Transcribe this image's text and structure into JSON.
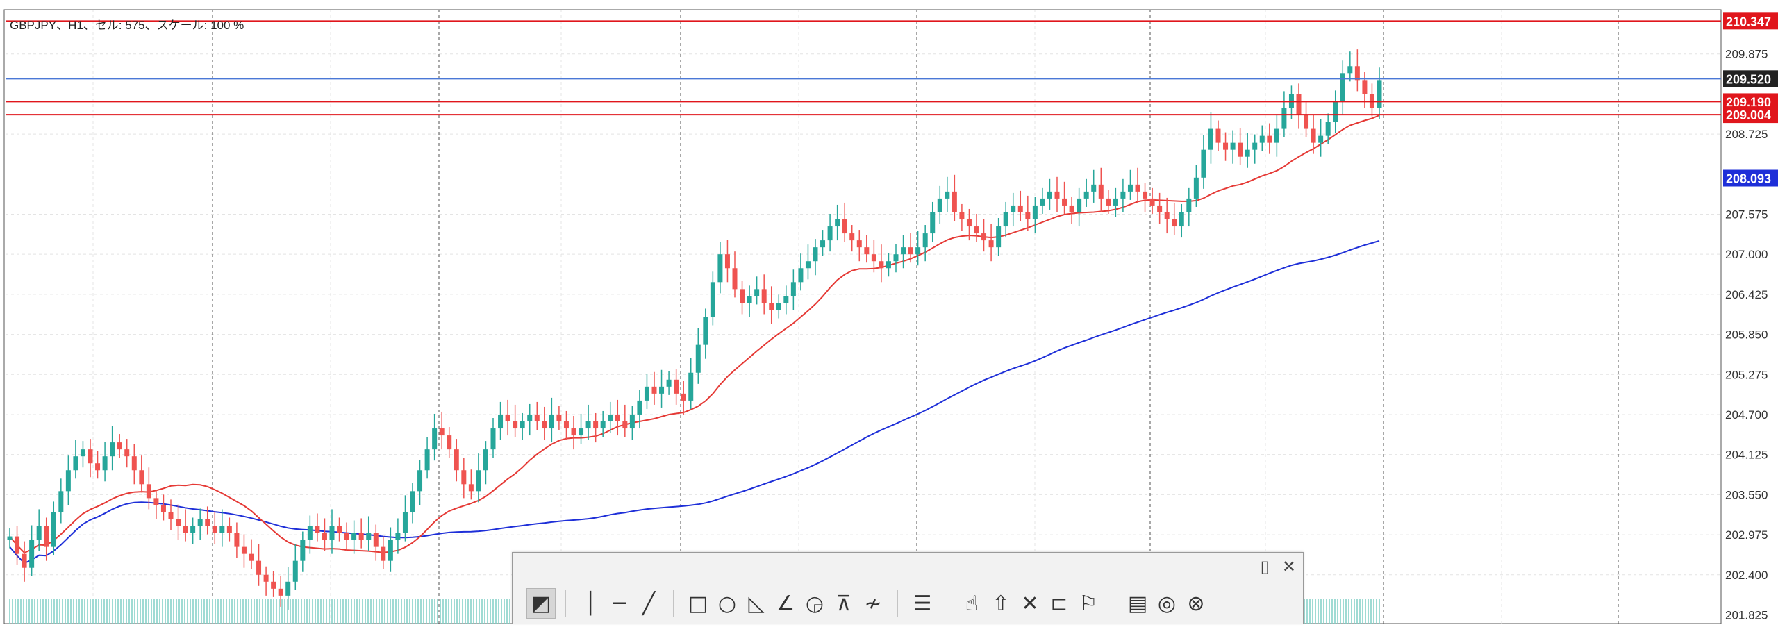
{
  "chart_info": "GBPJPY、H1、セル: 575、スケール: 100 %",
  "colors": {
    "bull": "#26a69a",
    "bear": "#ef5350",
    "ma_fast": "#e53935",
    "ma_slow": "#1e2fd8",
    "line_red": "#e0161c",
    "line_blue": "#4a78d6",
    "grid": "#e4e4e4",
    "vgrid": "#505050",
    "label_buy": "#2aa198",
    "label_sell": "#ef6a6a"
  },
  "chart_data": {
    "type": "candlestick",
    "symbol": "GBPJPY",
    "timeframe": "H1",
    "ylim": [
      201.7,
      210.45
    ],
    "y_ticks": [
      209.875,
      208.725,
      207.575,
      207.0,
      206.425,
      205.85,
      205.275,
      204.7,
      204.125,
      203.55,
      202.975,
      202.4,
      201.825
    ],
    "y_tick_labels": [
      "209.875",
      "208.725",
      "207.575",
      "207.000",
      "206.425",
      "205.850",
      "205.275",
      "204.700",
      "204.125",
      "203.550",
      "202.975",
      "202.400",
      "201.825"
    ],
    "price_labels": [
      {
        "value": 210.347,
        "text": "210.347",
        "bg": "#e0161c",
        "fg": "#ffffff"
      },
      {
        "value": 209.52,
        "text": "209.520",
        "bg": "#222222",
        "fg": "#ffffff"
      },
      {
        "value": 209.19,
        "text": "209.190",
        "bg": "#e0161c",
        "fg": "#ffffff"
      },
      {
        "value": 209.004,
        "text": "209.004",
        "bg": "#e0161c",
        "fg": "#ffffff"
      },
      {
        "value": 208.093,
        "text": "208.093",
        "bg": "#1e2fd8",
        "fg": "#ffffff"
      }
    ],
    "horizontal_lines": [
      {
        "value": 210.347,
        "color": "#e0161c"
      },
      {
        "value": 209.52,
        "color": "#4a78d6"
      },
      {
        "value": 209.19,
        "color": "#e0161c"
      },
      {
        "value": 209.004,
        "color": "#e0161c"
      }
    ],
    "close": [
      202.95,
      202.7,
      202.5,
      202.9,
      203.1,
      202.8,
      203.3,
      203.6,
      203.9,
      204.1,
      204.2,
      204.0,
      203.9,
      204.1,
      204.3,
      204.2,
      204.1,
      203.9,
      203.7,
      203.5,
      203.4,
      203.3,
      203.2,
      203.1,
      203.0,
      203.1,
      203.2,
      203.1,
      203.0,
      203.1,
      203.0,
      202.8,
      202.7,
      202.6,
      202.4,
      202.3,
      202.2,
      202.1,
      202.3,
      202.6,
      202.9,
      203.1,
      203.0,
      202.9,
      203.1,
      203.0,
      202.9,
      203.0,
      202.9,
      203.0,
      202.8,
      202.6,
      202.9,
      203.0,
      203.3,
      203.6,
      203.9,
      204.2,
      204.5,
      204.4,
      204.2,
      203.9,
      203.7,
      203.6,
      203.9,
      204.2,
      204.5,
      204.7,
      204.6,
      204.5,
      204.6,
      204.7,
      204.6,
      204.5,
      204.7,
      204.6,
      204.5,
      204.4,
      204.5,
      204.6,
      204.5,
      204.6,
      204.7,
      204.6,
      204.5,
      204.7,
      204.9,
      205.1,
      205.0,
      205.1,
      205.2,
      205.0,
      204.9,
      205.3,
      205.7,
      206.1,
      206.6,
      207.0,
      206.8,
      206.5,
      206.3,
      206.4,
      206.5,
      206.3,
      206.2,
      206.3,
      206.4,
      206.6,
      206.8,
      206.9,
      207.1,
      207.2,
      207.4,
      207.5,
      207.3,
      207.2,
      207.1,
      207.0,
      206.9,
      206.8,
      206.9,
      207.0,
      207.1,
      207.0,
      207.1,
      207.3,
      207.6,
      207.8,
      207.9,
      207.6,
      207.5,
      207.4,
      207.3,
      207.2,
      207.1,
      207.4,
      207.6,
      207.7,
      207.6,
      207.5,
      207.7,
      207.8,
      207.9,
      207.8,
      207.7,
      207.6,
      207.8,
      207.9,
      208.0,
      207.8,
      207.7,
      207.8,
      207.9,
      208.0,
      207.9,
      207.8,
      207.7,
      207.6,
      207.5,
      207.4,
      207.6,
      207.8,
      208.1,
      208.5,
      208.8,
      208.6,
      208.5,
      208.6,
      208.4,
      208.5,
      208.6,
      208.7,
      208.6,
      208.8,
      209.1,
      209.3,
      209.0,
      208.8,
      208.6,
      208.7,
      208.9,
      209.2,
      209.6,
      209.7,
      209.5,
      209.3,
      209.1,
      209.5
    ]
  },
  "toolbar": {
    "top_buttons": [
      {
        "name": "toolbar-orient-icon",
        "glyph": "▯"
      },
      {
        "name": "toolbar-close-icon",
        "glyph": "✕"
      }
    ],
    "groups": [
      [
        {
          "name": "select-tool-icon",
          "glyph": "◩",
          "active": true
        }
      ],
      [
        {
          "name": "vertical-line-icon",
          "glyph": "│"
        },
        {
          "name": "horizontal-line-icon",
          "glyph": "─"
        },
        {
          "name": "trendline-icon",
          "glyph": "╱"
        }
      ],
      [
        {
          "name": "rectangle-icon",
          "glyph": "□"
        },
        {
          "name": "ellipse-icon",
          "glyph": "○"
        },
        {
          "name": "triangle-icon",
          "glyph": "◺"
        },
        {
          "name": "channel-icon",
          "glyph": "∠"
        },
        {
          "name": "fibonacci-icon",
          "glyph": "◶"
        },
        {
          "name": "gann-icon",
          "glyph": "⊼"
        },
        {
          "name": "wave-icon",
          "glyph": "≁"
        }
      ],
      [
        {
          "name": "properties-icon",
          "glyph": "☰"
        }
      ],
      [
        {
          "name": "thumbs-up-icon",
          "glyph": "☝"
        },
        {
          "name": "arrow-up-icon",
          "glyph": "⇧"
        },
        {
          "name": "cross-icon",
          "glyph": "✕"
        },
        {
          "name": "price-label-icon",
          "glyph": "⊏"
        },
        {
          "name": "flag-icon",
          "glyph": "⚐"
        }
      ],
      [
        {
          "name": "document-icon",
          "glyph": "▤"
        },
        {
          "name": "target-icon",
          "glyph": "◎"
        },
        {
          "name": "delete-target-icon",
          "glyph": "⊗"
        }
      ]
    ]
  }
}
